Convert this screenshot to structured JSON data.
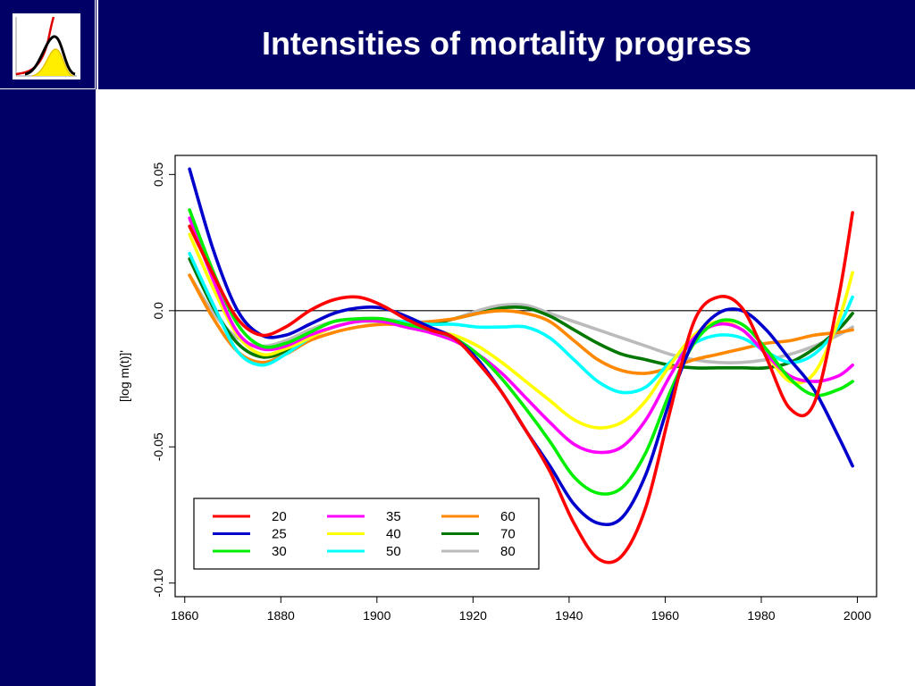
{
  "header": {
    "title": "Intensities of mortality progress",
    "logo": "mortality-curves-logo"
  },
  "colors": {
    "background_bar": "#000066",
    "title_text": "#ffffff"
  },
  "chart_data": {
    "type": "line",
    "title": "",
    "xlabel": "",
    "ylabel": "[log m(t)]'",
    "xlim": [
      1858,
      2004
    ],
    "ylim": [
      -0.105,
      0.057
    ],
    "xticks": [
      1860,
      1880,
      1900,
      1920,
      1940,
      1960,
      1980,
      2000
    ],
    "yticks": [
      {
        "value": 0.05,
        "label": "0.05"
      },
      {
        "value": 0.0,
        "label": "0.0"
      },
      {
        "value": -0.05,
        "label": "-0.05"
      },
      {
        "value": -0.1,
        "label": "-0.10"
      }
    ],
    "reference_line": 0,
    "legend_position": "bottom-left",
    "series": [
      {
        "name": "20",
        "color": "#ff0000",
        "x": [
          1861,
          1866,
          1871,
          1876,
          1881,
          1886,
          1891,
          1896,
          1901,
          1906,
          1911,
          1916,
          1921,
          1926,
          1931,
          1936,
          1941,
          1946,
          1951,
          1956,
          1961,
          1966,
          1971,
          1976,
          1981,
          1986,
          1991,
          1996,
          1999
        ],
        "y": [
          0.031,
          0.013,
          -0.003,
          -0.009,
          -0.006,
          0.0,
          0.004,
          0.005,
          0.002,
          -0.003,
          -0.007,
          -0.01,
          -0.019,
          -0.03,
          -0.044,
          -0.059,
          -0.078,
          -0.091,
          -0.09,
          -0.072,
          -0.037,
          -0.004,
          0.005,
          0.001,
          -0.017,
          -0.036,
          -0.034,
          0.004,
          0.036
        ]
      },
      {
        "name": "25",
        "color": "#0000cc",
        "x": [
          1861,
          1866,
          1871,
          1876,
          1881,
          1886,
          1891,
          1896,
          1901,
          1906,
          1911,
          1916,
          1921,
          1926,
          1931,
          1936,
          1941,
          1946,
          1951,
          1956,
          1961,
          1966,
          1971,
          1976,
          1981,
          1986,
          1991,
          1996,
          1999
        ],
        "y": [
          0.052,
          0.022,
          0.0,
          -0.009,
          -0.009,
          -0.005,
          -0.001,
          0.001,
          0.001,
          -0.002,
          -0.006,
          -0.01,
          -0.018,
          -0.03,
          -0.044,
          -0.057,
          -0.071,
          -0.078,
          -0.076,
          -0.06,
          -0.033,
          -0.011,
          -0.001,
          0.0,
          -0.007,
          -0.018,
          -0.029,
          -0.046,
          -0.057
        ]
      },
      {
        "name": "30",
        "color": "#00ee00",
        "x": [
          1861,
          1866,
          1871,
          1876,
          1881,
          1886,
          1891,
          1896,
          1901,
          1906,
          1911,
          1916,
          1921,
          1926,
          1931,
          1936,
          1941,
          1946,
          1951,
          1956,
          1961,
          1966,
          1971,
          1976,
          1981,
          1986,
          1991,
          1996,
          1999
        ],
        "y": [
          0.037,
          0.014,
          -0.005,
          -0.013,
          -0.012,
          -0.008,
          -0.004,
          -0.003,
          -0.003,
          -0.005,
          -0.007,
          -0.01,
          -0.016,
          -0.025,
          -0.036,
          -0.048,
          -0.061,
          -0.067,
          -0.065,
          -0.052,
          -0.03,
          -0.012,
          -0.004,
          -0.005,
          -0.014,
          -0.025,
          -0.031,
          -0.029,
          -0.026
        ]
      },
      {
        "name": "35",
        "color": "#ff00ff",
        "x": [
          1861,
          1866,
          1871,
          1876,
          1881,
          1886,
          1891,
          1896,
          1901,
          1906,
          1911,
          1916,
          1921,
          1926,
          1931,
          1936,
          1941,
          1946,
          1951,
          1956,
          1961,
          1966,
          1971,
          1976,
          1981,
          1986,
          1991,
          1996,
          1999
        ],
        "y": [
          0.034,
          0.011,
          -0.008,
          -0.014,
          -0.013,
          -0.009,
          -0.006,
          -0.004,
          -0.004,
          -0.006,
          -0.008,
          -0.011,
          -0.016,
          -0.023,
          -0.032,
          -0.041,
          -0.049,
          -0.052,
          -0.05,
          -0.04,
          -0.024,
          -0.01,
          -0.005,
          -0.007,
          -0.016,
          -0.024,
          -0.026,
          -0.024,
          -0.02
        ]
      },
      {
        "name": "40",
        "color": "#ffff00",
        "x": [
          1861,
          1866,
          1871,
          1876,
          1881,
          1886,
          1891,
          1896,
          1901,
          1906,
          1911,
          1916,
          1921,
          1926,
          1931,
          1936,
          1941,
          1946,
          1951,
          1956,
          1961,
          1966,
          1971,
          1976,
          1981,
          1986,
          1991,
          1996,
          1999
        ],
        "y": [
          0.028,
          0.008,
          -0.009,
          -0.016,
          -0.014,
          -0.01,
          -0.006,
          -0.004,
          -0.004,
          -0.005,
          -0.007,
          -0.009,
          -0.013,
          -0.019,
          -0.026,
          -0.033,
          -0.04,
          -0.043,
          -0.041,
          -0.033,
          -0.02,
          -0.009,
          -0.004,
          -0.007,
          -0.016,
          -0.026,
          -0.023,
          -0.004,
          0.014
        ]
      },
      {
        "name": "50",
        "color": "#00ffff",
        "x": [
          1861,
          1866,
          1871,
          1876,
          1881,
          1886,
          1891,
          1896,
          1901,
          1906,
          1911,
          1916,
          1921,
          1926,
          1931,
          1936,
          1941,
          1946,
          1951,
          1956,
          1961,
          1966,
          1971,
          1976,
          1981,
          1986,
          1991,
          1996,
          1999
        ],
        "y": [
          0.021,
          0.002,
          -0.015,
          -0.02,
          -0.016,
          -0.01,
          -0.006,
          -0.004,
          -0.004,
          -0.004,
          -0.005,
          -0.005,
          -0.006,
          -0.006,
          -0.006,
          -0.01,
          -0.018,
          -0.026,
          -0.03,
          -0.028,
          -0.019,
          -0.012,
          -0.009,
          -0.01,
          -0.015,
          -0.019,
          -0.016,
          -0.006,
          0.005
        ]
      },
      {
        "name": "60",
        "color": "#ff8800",
        "x": [
          1861,
          1866,
          1871,
          1876,
          1881,
          1886,
          1891,
          1896,
          1901,
          1906,
          1911,
          1916,
          1921,
          1926,
          1931,
          1936,
          1941,
          1946,
          1951,
          1956,
          1961,
          1966,
          1971,
          1976,
          1981,
          1986,
          1991,
          1996,
          1999
        ],
        "y": [
          0.013,
          -0.003,
          -0.015,
          -0.019,
          -0.016,
          -0.011,
          -0.008,
          -0.006,
          -0.005,
          -0.005,
          -0.004,
          -0.003,
          -0.001,
          0.0,
          -0.001,
          -0.004,
          -0.011,
          -0.018,
          -0.022,
          -0.023,
          -0.021,
          -0.018,
          -0.016,
          -0.014,
          -0.012,
          -0.011,
          -0.009,
          -0.008,
          -0.007
        ]
      },
      {
        "name": "70",
        "color": "#007700",
        "x": [
          1861,
          1866,
          1871,
          1876,
          1881,
          1886,
          1891,
          1896,
          1901,
          1906,
          1911,
          1916,
          1921,
          1926,
          1931,
          1936,
          1941,
          1946,
          1951,
          1956,
          1961,
          1966,
          1971,
          1976,
          1981,
          1986,
          1991,
          1996,
          1999
        ],
        "y": [
          0.019,
          0.001,
          -0.012,
          -0.017,
          -0.015,
          -0.01,
          -0.006,
          -0.004,
          -0.004,
          -0.005,
          -0.005,
          -0.003,
          -0.001,
          0.001,
          0.001,
          -0.002,
          -0.007,
          -0.012,
          -0.016,
          -0.018,
          -0.02,
          -0.021,
          -0.021,
          -0.021,
          -0.021,
          -0.019,
          -0.014,
          -0.007,
          -0.001
        ]
      },
      {
        "name": "80",
        "color": "#bbbbbb",
        "x": [
          1861,
          1866,
          1871,
          1876,
          1881,
          1886,
          1891,
          1896,
          1901,
          1906,
          1911,
          1916,
          1921,
          1926,
          1931,
          1936,
          1941,
          1946,
          1951,
          1956,
          1961,
          1966,
          1971,
          1976,
          1981,
          1986,
          1991,
          1996,
          1999
        ],
        "y": [
          0.013,
          -0.001,
          -0.01,
          -0.013,
          -0.011,
          -0.007,
          -0.004,
          -0.003,
          -0.003,
          -0.004,
          -0.004,
          -0.003,
          0.0,
          0.002,
          0.002,
          -0.001,
          -0.004,
          -0.007,
          -0.01,
          -0.013,
          -0.016,
          -0.018,
          -0.019,
          -0.019,
          -0.018,
          -0.016,
          -0.013,
          -0.009,
          -0.006
        ]
      }
    ]
  }
}
